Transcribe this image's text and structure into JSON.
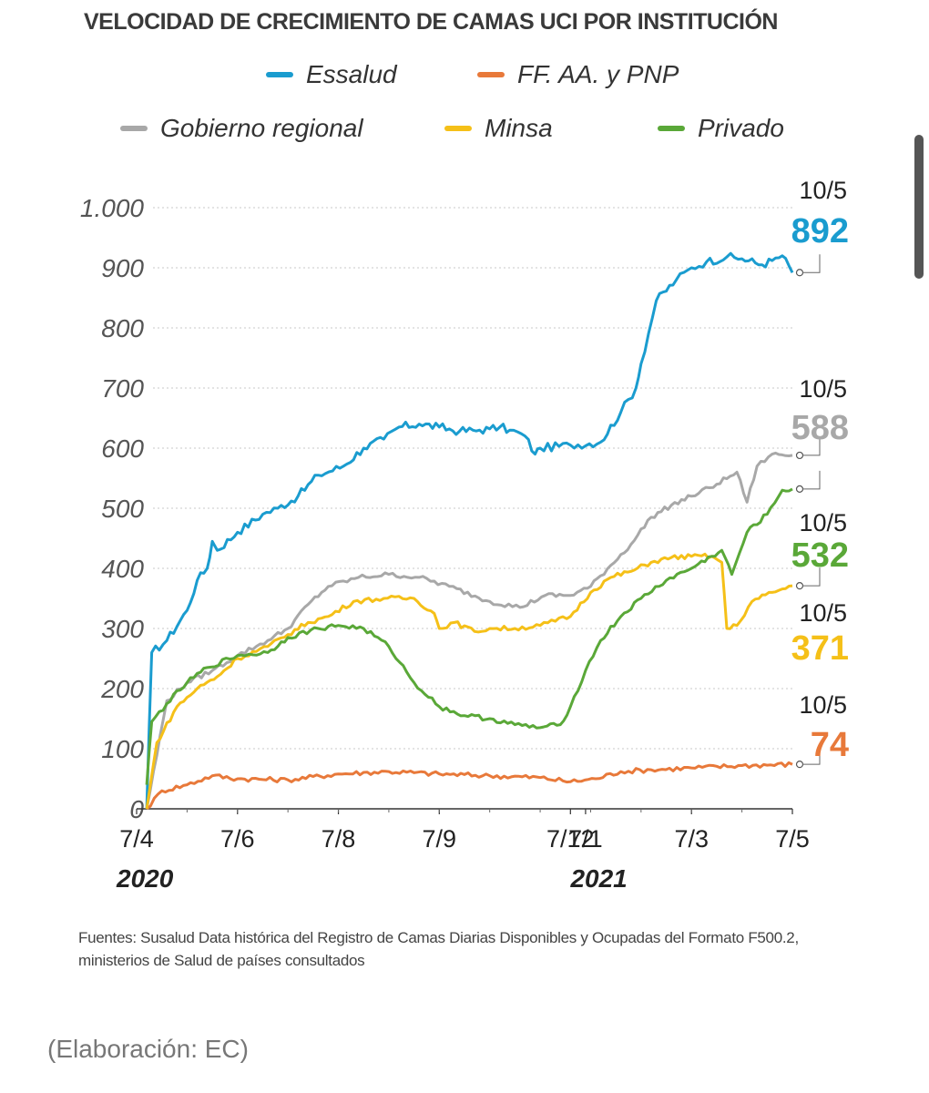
{
  "title": "VELOCIDAD DE CRECIMIENTO DE CAMAS UCI POR INSTITUCIÓN",
  "legend": [
    {
      "label": "Essalud",
      "color": "#1a9ccf"
    },
    {
      "label": "FF. AA. y PNP",
      "color": "#e8793a"
    },
    {
      "label": "Gobierno regional",
      "color": "#a8a8a8"
    },
    {
      "label": "Minsa",
      "color": "#f5c018"
    },
    {
      "label": "Privado",
      "color": "#5aa838"
    }
  ],
  "chart_data": {
    "type": "line",
    "title": "VELOCIDAD DE CRECIMIENTO DE CAMAS UCI POR INSTITUCIÓN",
    "xlabel": "",
    "ylabel": "",
    "ylim": [
      0,
      1000
    ],
    "yticks": [
      0,
      100,
      200,
      300,
      400,
      500,
      600,
      700,
      800,
      900,
      1000
    ],
    "ytick_labels": [
      "0",
      "100",
      "200",
      "300",
      "400",
      "500",
      "600",
      "700",
      "800",
      "900",
      "1.000"
    ],
    "x_tick_labels": [
      "7/4",
      "7/6",
      "7/8",
      "7/9",
      "7/12",
      "7/1",
      "7/3",
      "7/5"
    ],
    "x_tick_positions": [
      0,
      2,
      4,
      6,
      8.6,
      8.9,
      11,
      13
    ],
    "years": [
      {
        "label": "2020",
        "x": 0
      },
      {
        "label": "2021",
        "x": 9
      }
    ],
    "x_range": [
      0,
      13
    ],
    "series": [
      {
        "name": "Essalud",
        "color": "#1a9ccf",
        "end_date": "10/5",
        "end_value": "892",
        "x": [
          0.2,
          0.3,
          0.6,
          1.0,
          1.2,
          1.4,
          1.5,
          1.6,
          2.0,
          2.5,
          2.8,
          3.2,
          3.6,
          4.1,
          4.5,
          4.9,
          5.2,
          5.6,
          6.0,
          6.4,
          6.8,
          7.0,
          7.2,
          7.4,
          7.7,
          7.9,
          8.0,
          8.6,
          9.2,
          9.6,
          9.9,
          10.0,
          10.3,
          10.7,
          11.0,
          11.3,
          11.7,
          12.0,
          12.4,
          12.6,
          12.8,
          13.0
        ],
        "y": [
          0,
          260,
          280,
          330,
          380,
          400,
          445,
          430,
          460,
          490,
          500,
          520,
          555,
          570,
          600,
          615,
          635,
          640,
          635,
          628,
          630,
          632,
          635,
          630,
          620,
          590,
          600,
          605,
          610,
          660,
          700,
          740,
          845,
          880,
          900,
          910,
          918,
          915,
          905,
          912,
          920,
          892
        ]
      },
      {
        "name": "FF. AA. y PNP",
        "color": "#e8793a",
        "end_date": "10/5",
        "end_value": "74",
        "x": [
          0.2,
          0.5,
          1.0,
          1.5,
          2.0,
          3.0,
          4.0,
          5.0,
          6.0,
          7.0,
          8.0,
          8.6,
          9.1,
          9.6,
          10.2,
          11.0,
          12.0,
          13.0
        ],
        "y": [
          0,
          30,
          40,
          55,
          50,
          48,
          58,
          62,
          58,
          55,
          52,
          45,
          50,
          62,
          65,
          68,
          72,
          74
        ]
      },
      {
        "name": "Gobierno regional",
        "color": "#a8a8a8",
        "end_date": "10/5",
        "end_value": "588",
        "x": [
          0.2,
          0.6,
          1.0,
          1.5,
          2.0,
          2.6,
          3.0,
          3.4,
          3.8,
          4.4,
          5.0,
          5.6,
          6.2,
          7.0,
          7.6,
          8.1,
          8.6,
          9.0,
          9.4,
          9.8,
          10.2,
          10.6,
          11.0,
          11.5,
          11.9,
          12.1,
          12.3,
          12.6,
          13.0
        ],
        "y": [
          0,
          180,
          210,
          230,
          255,
          280,
          300,
          340,
          370,
          385,
          390,
          385,
          370,
          345,
          335,
          355,
          355,
          370,
          405,
          440,
          485,
          505,
          520,
          540,
          560,
          510,
          570,
          590,
          588
        ]
      },
      {
        "name": "Minsa",
        "color": "#f5c018",
        "end_date": "10/5",
        "end_value": "371",
        "x": [
          0.2,
          0.4,
          0.8,
          1.2,
          1.6,
          2.0,
          2.6,
          3.0,
          3.4,
          3.8,
          4.3,
          4.9,
          5.5,
          5.9,
          6.0,
          6.3,
          6.7,
          7.0,
          7.5,
          8.0,
          8.6,
          9.0,
          9.4,
          9.8,
          10.2,
          10.6,
          11.0,
          11.4,
          11.6,
          11.7,
          11.9,
          12.2,
          12.6,
          13.0
        ],
        "y": [
          0,
          110,
          170,
          200,
          220,
          250,
          270,
          290,
          310,
          320,
          345,
          350,
          350,
          325,
          300,
          310,
          295,
          300,
          300,
          305,
          320,
          360,
          385,
          395,
          410,
          418,
          420,
          420,
          410,
          300,
          305,
          345,
          360,
          371
        ]
      },
      {
        "name": "Privado",
        "color": "#5aa838",
        "end_date": "10/5",
        "end_value": "532",
        "x": [
          0.2,
          0.3,
          0.6,
          1.0,
          1.4,
          2.0,
          2.6,
          3.0,
          3.6,
          4.0,
          4.5,
          5.0,
          5.5,
          6.0,
          6.5,
          7.0,
          7.5,
          8.0,
          8.4,
          8.6,
          8.9,
          9.2,
          9.6,
          10.0,
          10.5,
          11.0,
          11.4,
          11.6,
          11.8,
          12.1,
          12.5,
          12.8,
          13.0
        ],
        "y": [
          40,
          145,
          175,
          210,
          235,
          255,
          260,
          285,
          300,
          305,
          300,
          270,
          210,
          170,
          155,
          150,
          140,
          135,
          140,
          170,
          230,
          280,
          320,
          350,
          380,
          400,
          420,
          430,
          390,
          460,
          490,
          530,
          532
        ]
      }
    ]
  },
  "source": "Fuentes: Susalud Data histórica del Registro de Camas Diarias Disponibles y Ocupadas del Formato F500.2, ministerios de Salud de países consultados",
  "credit": "(Elaboración: EC)"
}
